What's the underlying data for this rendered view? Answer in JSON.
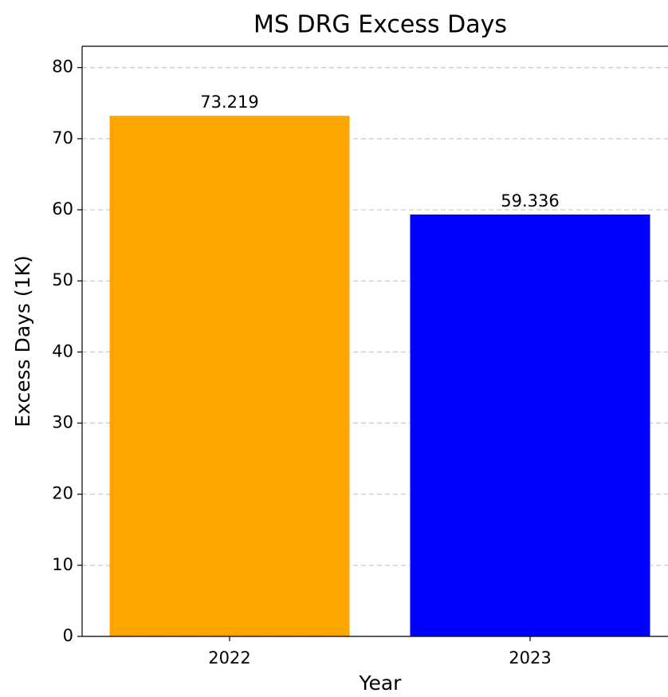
{
  "chart_data": {
    "type": "bar",
    "title": "MS DRG Excess Days",
    "x_label": "Year",
    "y_label": "Excess Days (1K)",
    "categories": [
      "2022",
      "2023"
    ],
    "values": [
      73.219,
      59.336
    ],
    "colors": [
      "#ffa500",
      "#0000ff"
    ],
    "ylim": [
      0,
      83
    ],
    "yticks": [
      0,
      10,
      20,
      30,
      40,
      50,
      60,
      70,
      80
    ],
    "grid": true
  }
}
